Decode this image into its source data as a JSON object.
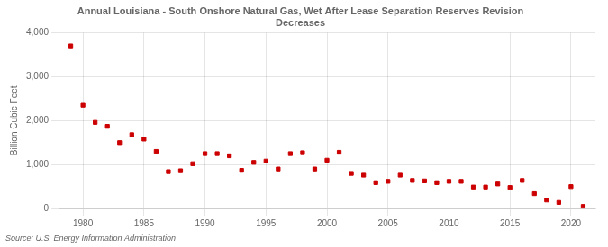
{
  "chart_data": {
    "type": "scatter",
    "title": "Annual Louisiana - South Onshore Natural Gas, Wet After Lease Separation Reserves Revision\nDecreases",
    "ylabel": "Billion Cubic Feet",
    "annotation": "Source: U.S. Energy Information Administration",
    "x": [
      1979,
      1980,
      1981,
      1982,
      1983,
      1984,
      1985,
      1986,
      1987,
      1988,
      1989,
      1990,
      1991,
      1992,
      1993,
      1994,
      1995,
      1996,
      1997,
      1998,
      1999,
      2000,
      2001,
      2002,
      2003,
      2004,
      2005,
      2006,
      2007,
      2008,
      2009,
      2010,
      2011,
      2012,
      2013,
      2014,
      2015,
      2016,
      2017,
      2018,
      2019,
      2020,
      2021
    ],
    "values": [
      3700,
      2350,
      1960,
      1870,
      1500,
      1680,
      1580,
      1300,
      840,
      860,
      1020,
      1250,
      1250,
      1200,
      870,
      1050,
      1080,
      900,
      1250,
      1270,
      900,
      1100,
      1280,
      800,
      760,
      590,
      620,
      760,
      640,
      630,
      590,
      620,
      620,
      490,
      490,
      560,
      480,
      640,
      340,
      195,
      140,
      500,
      50
    ],
    "color": "#cc0000",
    "marker": "square",
    "xlim": [
      1978,
      2022
    ],
    "ylim": [
      0,
      4000
    ],
    "xticks": [
      1980,
      1985,
      1990,
      1995,
      2000,
      2005,
      2010,
      2015,
      2020
    ],
    "yticks": [
      0,
      {
        "value": 1000,
        "label": "1,000"
      },
      {
        "value": 2000,
        "label": "2,000"
      },
      {
        "value": 3000,
        "label": "3,000"
      },
      {
        "value": 4000,
        "label": "4,000"
      }
    ],
    "grid": true
  }
}
